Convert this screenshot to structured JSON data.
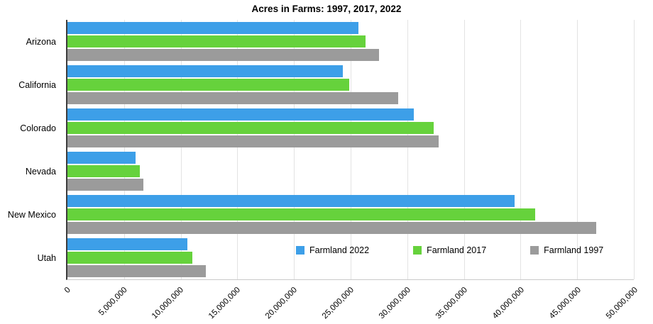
{
  "title": "Acres in Farms: 1997, 2017, 2022",
  "chart_data": {
    "type": "bar",
    "orientation": "horizontal",
    "title": "Acres in Farms: 1997, 2017, 2022",
    "categories": [
      "Arizona",
      "California",
      "Colorado",
      "Nevada",
      "New Mexico",
      "Utah"
    ],
    "series": [
      {
        "name": "Farmland 2022",
        "color": "#3d9fe8",
        "values": [
          25700000,
          24300000,
          30600000,
          6000000,
          39500000,
          10600000
        ]
      },
      {
        "name": "Farmland 2017",
        "color": "#66d23c",
        "values": [
          26300000,
          24900000,
          32300000,
          6400000,
          41300000,
          11000000
        ]
      },
      {
        "name": "Farmland 1997",
        "color": "#9b9b9b",
        "values": [
          27500000,
          29200000,
          32800000,
          6700000,
          46700000,
          12200000
        ]
      }
    ],
    "xlim": [
      0,
      50000000
    ],
    "x_ticks": [
      0,
      5000000,
      10000000,
      15000000,
      20000000,
      25000000,
      30000000,
      35000000,
      40000000,
      45000000,
      50000000
    ],
    "x_tick_labels": [
      "0",
      "5,000,000",
      "10,000,000",
      "15,000,000",
      "20,000,000",
      "25,000,000",
      "30,000,000",
      "35,000,000",
      "40,000,000",
      "45,000,000",
      "50,000,000"
    ],
    "xlabel": "",
    "ylabel": "",
    "grid": true,
    "legend_position": "inside-bottom-right"
  }
}
